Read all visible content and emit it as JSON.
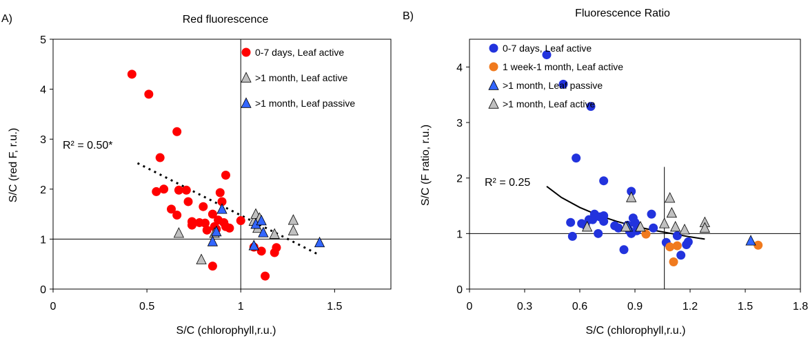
{
  "charts": [
    {
      "panel_label": "A)",
      "title": "Red fluorescence",
      "xlabel": "S/C (chlorophyll,r.u.)",
      "ylabel": "S/C (red F, r.u.)",
      "x_ticks": [
        "0",
        "0.5",
        "1",
        "1.5"
      ],
      "y_ticks": [
        "0",
        "1",
        "2",
        "3",
        "4",
        "5"
      ],
      "annotation": "R² = 0.50*",
      "legend": [
        {
          "label": "0-7 days, Leaf active",
          "color": "#ff0000",
          "marker": "circle"
        },
        {
          "label": ">1 month, Leaf active",
          "color": "#c0c0c0",
          "marker": "triangle"
        },
        {
          "label": ">1 month, Leaf passive",
          "color": "#3366ff",
          "marker": "triangle"
        }
      ]
    },
    {
      "panel_label": "B)",
      "title": "Fluorescence Ratio",
      "xlabel": "S/C (chlorophyll,r.u.)",
      "ylabel": "S/C (F ratio, r.u.)",
      "x_ticks": [
        "0",
        "0.3",
        "0.6",
        "0.9",
        "1.2",
        "1.5",
        "1.8"
      ],
      "y_ticks": [
        "0",
        "1",
        "2",
        "3",
        "4"
      ],
      "annotation": "R² = 0.25",
      "legend": [
        {
          "label": "0-7 days, Leaf active",
          "color": "#2233dd",
          "marker": "circle"
        },
        {
          "label": "1 week-1 month, Leaf active",
          "color": "#f07a1e",
          "marker": "circle"
        },
        {
          "label": ">1 month, Leaf passive",
          "color": "#3366ff",
          "marker": "triangle"
        },
        {
          "label": ">1 month, Leaf active",
          "color": "#c0c0c0",
          "marker": "triangle"
        }
      ]
    }
  ],
  "chart_data": [
    {
      "type": "scatter",
      "title": "Red fluorescence",
      "xlabel": "S/C (chlorophyll,r.u.)",
      "ylabel": "S/C (red F, r.u.)",
      "xlim": [
        0,
        1.8
      ],
      "ylim": [
        0,
        5
      ],
      "reference_lines": {
        "x": 1.0,
        "y": 1.0
      },
      "trendline": {
        "type": "linear",
        "style": "dashed",
        "x": [
          0.45,
          1.42
        ],
        "y": [
          2.52,
          0.68
        ],
        "annotation": "R² = 0.50*"
      },
      "legend_position": "top-right",
      "series": [
        {
          "name": "0-7 days, Leaf active",
          "marker": "circle",
          "color": "#ff0000",
          "points": [
            [
              0.42,
              4.3
            ],
            [
              0.51,
              3.9
            ],
            [
              0.57,
              2.63
            ],
            [
              0.66,
              3.15
            ],
            [
              0.55,
              1.95
            ],
            [
              0.59,
              2.0
            ],
            [
              0.63,
              1.6
            ],
            [
              0.67,
              1.98
            ],
            [
              0.71,
              1.98
            ],
            [
              0.72,
              1.75
            ],
            [
              0.74,
              1.35
            ],
            [
              0.74,
              1.28
            ],
            [
              0.66,
              1.48
            ],
            [
              0.78,
              1.33
            ],
            [
              0.8,
              1.65
            ],
            [
              0.81,
              1.32
            ],
            [
              0.82,
              1.18
            ],
            [
              0.85,
              1.5
            ],
            [
              0.86,
              1.25
            ],
            [
              0.87,
              1.2
            ],
            [
              0.89,
              1.93
            ],
            [
              0.9,
              1.75
            ],
            [
              0.91,
              1.33
            ],
            [
              0.92,
              2.28
            ],
            [
              0.92,
              1.25
            ],
            [
              0.94,
              1.22
            ],
            [
              0.88,
              1.38
            ],
            [
              1.0,
              1.37
            ],
            [
              0.85,
              0.46
            ],
            [
              1.07,
              0.84
            ],
            [
              1.11,
              0.76
            ],
            [
              1.13,
              0.26
            ],
            [
              1.18,
              0.73
            ],
            [
              1.19,
              0.83
            ]
          ]
        },
        {
          "name": ">1 month, Leaf active",
          "marker": "triangle",
          "color": "#c0c0c0",
          "points": [
            [
              0.67,
              1.12
            ],
            [
              0.79,
              0.59
            ],
            [
              0.86,
              1.12
            ],
            [
              1.07,
              1.36
            ],
            [
              1.08,
              1.5
            ],
            [
              1.1,
              1.42
            ],
            [
              1.09,
              1.22
            ],
            [
              1.18,
              1.1
            ],
            [
              1.28,
              1.38
            ],
            [
              1.28,
              1.17
            ]
          ]
        },
        {
          "name": ">1 month, Leaf passive",
          "marker": "triangle",
          "color": "#3366ff",
          "points": [
            [
              0.85,
              0.95
            ],
            [
              0.87,
              1.15
            ],
            [
              0.9,
              1.6
            ],
            [
              1.07,
              0.87
            ],
            [
              1.08,
              1.3
            ],
            [
              1.11,
              1.37
            ],
            [
              1.12,
              1.13
            ],
            [
              1.42,
              0.93
            ]
          ]
        }
      ]
    },
    {
      "type": "scatter",
      "title": "Fluorescence Ratio",
      "xlabel": "S/C (chlorophyll,r.u.)",
      "ylabel": "S/C (F ratio, r.u.)",
      "xlim": [
        0,
        1.8
      ],
      "ylim": [
        0,
        4.5
      ],
      "reference_lines": {
        "x": 1.06,
        "y": 1.0
      },
      "trendline": {
        "type": "power",
        "style": "solid",
        "x": [
          0.42,
          0.5,
          0.6,
          0.7,
          0.8,
          0.9,
          1.0,
          1.1,
          1.2,
          1.28
        ],
        "y": [
          1.85,
          1.65,
          1.47,
          1.33,
          1.22,
          1.13,
          1.06,
          1.0,
          0.94,
          0.9
        ],
        "annotation": "R² = 0.25"
      },
      "legend_position": "top-right",
      "series": [
        {
          "name": "0-7 days, Leaf active",
          "marker": "circle",
          "color": "#2233dd",
          "points": [
            [
              0.42,
              4.22
            ],
            [
              0.51,
              3.69
            ],
            [
              0.66,
              3.29
            ],
            [
              0.58,
              2.36
            ],
            [
              0.73,
              1.95
            ],
            [
              0.88,
              1.76
            ],
            [
              0.55,
              1.2
            ],
            [
              0.56,
              0.95
            ],
            [
              0.61,
              1.18
            ],
            [
              0.63,
              1.15
            ],
            [
              0.65,
              1.25
            ],
            [
              0.67,
              1.25
            ],
            [
              0.68,
              1.35
            ],
            [
              0.7,
              1.0
            ],
            [
              0.71,
              1.3
            ],
            [
              0.73,
              1.32
            ],
            [
              0.73,
              1.22
            ],
            [
              0.79,
              1.14
            ],
            [
              0.81,
              1.1
            ],
            [
              0.86,
              1.15
            ],
            [
              0.87,
              1.05
            ],
            [
              0.88,
              1.0
            ],
            [
              0.89,
              1.28
            ],
            [
              0.9,
              1.2
            ],
            [
              0.91,
              1.15
            ],
            [
              0.99,
              1.35
            ],
            [
              1.0,
              1.1
            ],
            [
              0.84,
              0.71
            ],
            [
              0.91,
              1.05
            ],
            [
              1.07,
              0.84
            ],
            [
              1.13,
              0.96
            ],
            [
              1.15,
              0.61
            ],
            [
              1.18,
              0.8
            ],
            [
              1.19,
              0.85
            ]
          ]
        },
        {
          "name": "1 week-1 month, Leaf active",
          "marker": "circle",
          "color": "#f07a1e",
          "points": [
            [
              0.96,
              0.99
            ],
            [
              1.09,
              0.76
            ],
            [
              1.13,
              0.78
            ],
            [
              1.11,
              0.49
            ],
            [
              1.57,
              0.79
            ]
          ]
        },
        {
          "name": ">1 month, Leaf passive",
          "marker": "triangle",
          "color": "#3366ff",
          "points": [
            [
              0.86,
              1.12
            ],
            [
              1.53,
              0.87
            ]
          ]
        },
        {
          "name": ">1 month, Leaf active",
          "marker": "triangle",
          "color": "#c0c0c0",
          "points": [
            [
              0.64,
              1.12
            ],
            [
              0.85,
              1.12
            ],
            [
              0.88,
              1.65
            ],
            [
              0.93,
              1.12
            ],
            [
              1.06,
              1.18
            ],
            [
              1.09,
              1.64
            ],
            [
              1.1,
              1.37
            ],
            [
              1.12,
              1.12
            ],
            [
              1.17,
              1.07
            ],
            [
              1.28,
              1.2
            ],
            [
              1.28,
              1.1
            ]
          ]
        }
      ]
    }
  ]
}
